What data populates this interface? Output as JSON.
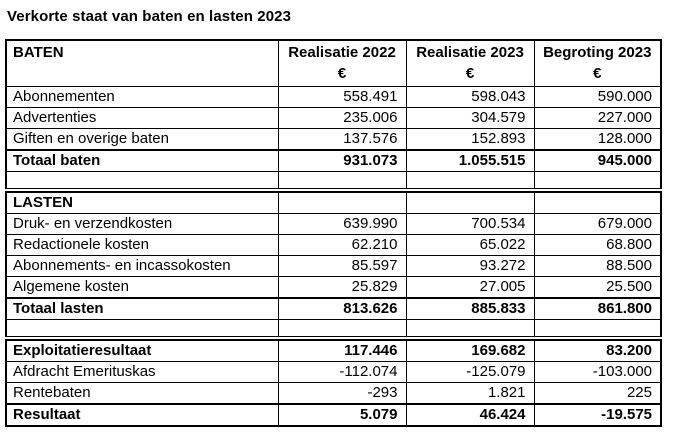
{
  "page": {
    "title": "Verkorte staat van baten en lasten 2023"
  },
  "table": {
    "header": {
      "row_label": "BATEN",
      "columns": [
        "Realisatie 2022",
        "Realisatie 2023",
        "Begroting 2023"
      ],
      "currency_symbol": "€"
    },
    "sections": [
      {
        "name": "baten",
        "rows": [
          {
            "label": "Abonnementen",
            "values": [
              "558.491",
              "598.043",
              "590.000"
            ]
          },
          {
            "label": "Advertenties",
            "values": [
              "235.006",
              "304.579",
              "227.000"
            ]
          },
          {
            "label": "Giften en overige baten",
            "values": [
              "137.576",
              "152.893",
              "128.000"
            ]
          },
          {
            "label": "Totaal baten",
            "values": [
              "931.073",
              "1.055.515",
              "945.000"
            ],
            "bold": true,
            "total": true
          },
          {
            "label": "",
            "values": [
              "",
              "",
              ""
            ],
            "empty": true
          }
        ]
      },
      {
        "name": "lasten",
        "rows": [
          {
            "label": "LASTEN",
            "values": [
              "",
              "",
              ""
            ],
            "bold": true,
            "section_header": true
          },
          {
            "label": "Druk- en verzendkosten",
            "values": [
              "639.990",
              "700.534",
              "679.000"
            ]
          },
          {
            "label": "Redactionele kosten",
            "values": [
              "62.210",
              "65.022",
              "68.800"
            ]
          },
          {
            "label": "Abonnements- en incassokosten",
            "values": [
              "85.597",
              "93.272",
              "88.500"
            ]
          },
          {
            "label": "Algemene kosten",
            "values": [
              "25.829",
              "27.005",
              "25.500"
            ]
          },
          {
            "label": "Totaal lasten",
            "values": [
              "813.626",
              "885.833",
              "861.800"
            ],
            "bold": true,
            "total": true
          },
          {
            "label": "",
            "values": [
              "",
              "",
              ""
            ],
            "empty": true
          }
        ]
      },
      {
        "name": "resultaat",
        "rows": [
          {
            "label": "Exploitatieresultaat",
            "values": [
              "117.446",
              "169.682",
              "83.200"
            ],
            "bold": true
          },
          {
            "label": "Afdracht Emerituskas",
            "values": [
              "-112.074",
              "-125.079",
              "-103.000"
            ]
          },
          {
            "label": "Rentebaten",
            "values": [
              "-293",
              "1.821",
              "225"
            ]
          },
          {
            "label": "Resultaat",
            "values": [
              "5.079",
              "46.424",
              "-19.575"
            ],
            "bold": true,
            "total": true
          }
        ]
      }
    ]
  }
}
